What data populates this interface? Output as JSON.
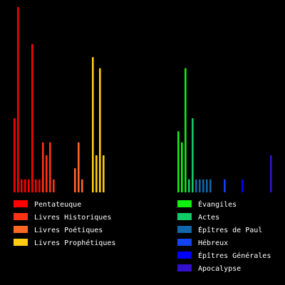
{
  "chart_data": {
    "type": "bar",
    "title": "",
    "xlabel": "",
    "ylabel": "",
    "ylim": [
      0,
      1
    ],
    "grid": false,
    "legend_position": "bottom",
    "background": "#000000",
    "series": [
      {
        "name": "Pentateuque",
        "color": "#ff0000",
        "values": [
          0.4,
          1.0,
          0.07,
          0.07,
          0.07,
          0.8,
          0.07,
          0.07
        ]
      },
      {
        "name": "Livres Historiques",
        "color": "#ff3311",
        "values": [
          0.27,
          0.2,
          0.27,
          0.07
        ]
      },
      {
        "name": "Livres Poétiques",
        "color": "#ff6622",
        "values": [
          0.13,
          0.27,
          0.07
        ]
      },
      {
        "name": "Livres Prophétiques",
        "color": "#ffcc11",
        "values": [
          0.73,
          0.2,
          0.67,
          0.2
        ]
      },
      {
        "name": "Évangiles",
        "color": "#11ee11",
        "values": [
          0.33,
          0.27,
          0.67
        ]
      },
      {
        "name": "Actes",
        "color": "#11cc66",
        "values": [
          0.07,
          0.4
        ]
      },
      {
        "name": "Épîtres de Paul",
        "color": "#1166aa",
        "values": [
          0.07,
          0.07,
          0.07,
          0.07,
          0.07
        ]
      },
      {
        "name": "Hébreux",
        "color": "#1144ee",
        "values": [
          0.07
        ]
      },
      {
        "name": "Épîtres Générales",
        "color": "#0000ff",
        "values": [
          0.07
        ]
      },
      {
        "name": "Apocalypse",
        "color": "#3311cc",
        "values": [
          0.2
        ]
      }
    ],
    "legend": [
      {
        "label": "Pentateuque",
        "color": "#ff0000"
      },
      {
        "label": "Livres Historiques",
        "color": "#ff3311"
      },
      {
        "label": "Livres Poétiques",
        "color": "#ff6622"
      },
      {
        "label": "Livres Prophétiques",
        "color": "#ffcc11"
      },
      {
        "label": "Évangiles",
        "color": "#11ee11"
      },
      {
        "label": "Actes",
        "color": "#11cc66"
      },
      {
        "label": "Épîtres de Paul",
        "color": "#1166aa"
      },
      {
        "label": "Hébreux",
        "color": "#1144ee"
      },
      {
        "label": "Épîtres Générales",
        "color": "#0000ff"
      },
      {
        "label": "Apocalypse",
        "color": "#3311cc"
      }
    ]
  }
}
